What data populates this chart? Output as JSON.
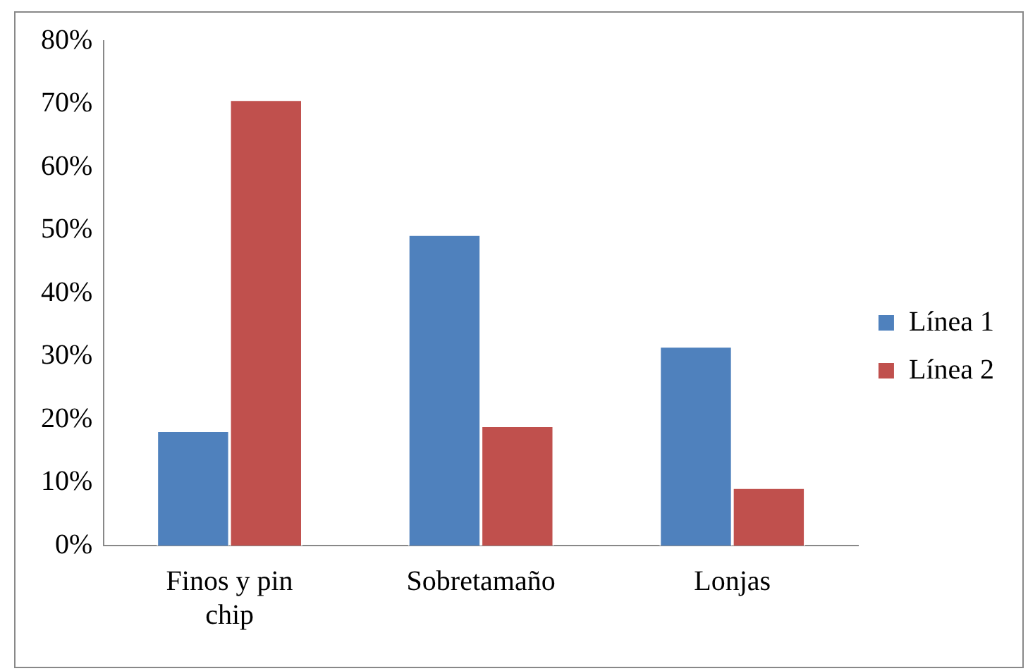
{
  "chart_data": {
    "type": "bar",
    "categories": [
      "Finos y pin chip",
      "Sobretamaño",
      "Lonjas"
    ],
    "series": [
      {
        "name": "Línea 1",
        "color": "#4f81bd",
        "values": [
          18.2,
          49.3,
          31.6
        ]
      },
      {
        "name": "Línea 2",
        "color": "#c0504d",
        "values": [
          70.7,
          19.0,
          9.2
        ]
      }
    ],
    "ylim": [
      0,
      80
    ],
    "yticks": [
      {
        "value": 0,
        "label": "0%"
      },
      {
        "value": 10,
        "label": "10%"
      },
      {
        "value": 20,
        "label": "20%"
      },
      {
        "value": 30,
        "label": "30%"
      },
      {
        "value": 40,
        "label": "40%"
      },
      {
        "value": 50,
        "label": "50%"
      },
      {
        "value": 60,
        "label": "60%"
      },
      {
        "value": 70,
        "label": "70%"
      },
      {
        "value": 80,
        "label": "80%"
      }
    ],
    "grid": false,
    "legend": "right"
  }
}
